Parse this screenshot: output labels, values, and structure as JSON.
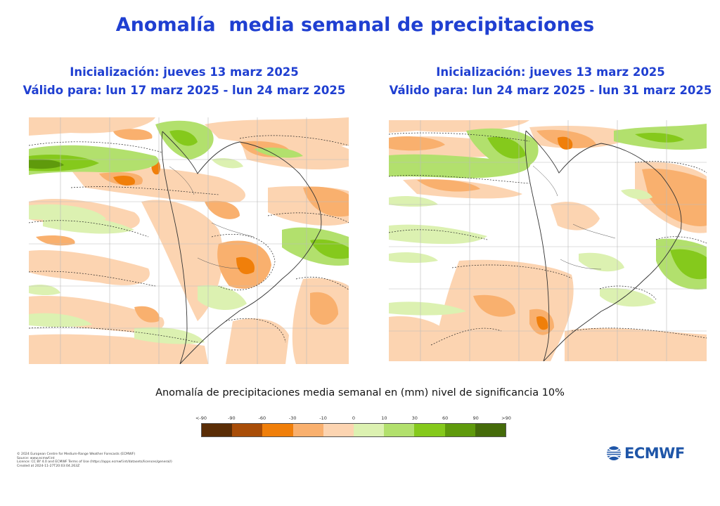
{
  "title": "Anomalía  media semanal de precipitaciones",
  "panels": [
    {
      "init": "Inicialización: jueves 13 marz 2025",
      "valid": "Válido para: lun 17 marz 2025 - lun 24 marz 2025"
    },
    {
      "init": "Inicialización: jueves 13 marz 2025",
      "valid": "Válido para: lun 24 marz 2025 - lun 31 marz 2025"
    }
  ],
  "legend": {
    "caption": "Anomalía de precipitaciones media semanal en (mm) nivel de significancia 10%",
    "ticks": [
      "<-90",
      "-90",
      "-60",
      "-30",
      "-10",
      "0",
      "10",
      "30",
      "60",
      "90",
      ">90"
    ],
    "colors": [
      "#5a2d06",
      "#a84d08",
      "#f07f0a",
      "#f9b06e",
      "#fcd4b1",
      "#dcf1b1",
      "#b2e06d",
      "#85c91c",
      "#5f9a0c",
      "#456b0a"
    ]
  },
  "credits": [
    "© 2024 European Centre for Medium-Range Weather Forecasts (ECMWF)",
    "Source: www.ecmwf.int",
    "Licence: CC BY 4.0 and ECMWF Terms of Use (https://apps.ecmwf.int/datasets/licences/general/)",
    "Created at 2024-11-27T20:03:04.263Z"
  ],
  "logo": {
    "text": "ECMWF"
  }
}
